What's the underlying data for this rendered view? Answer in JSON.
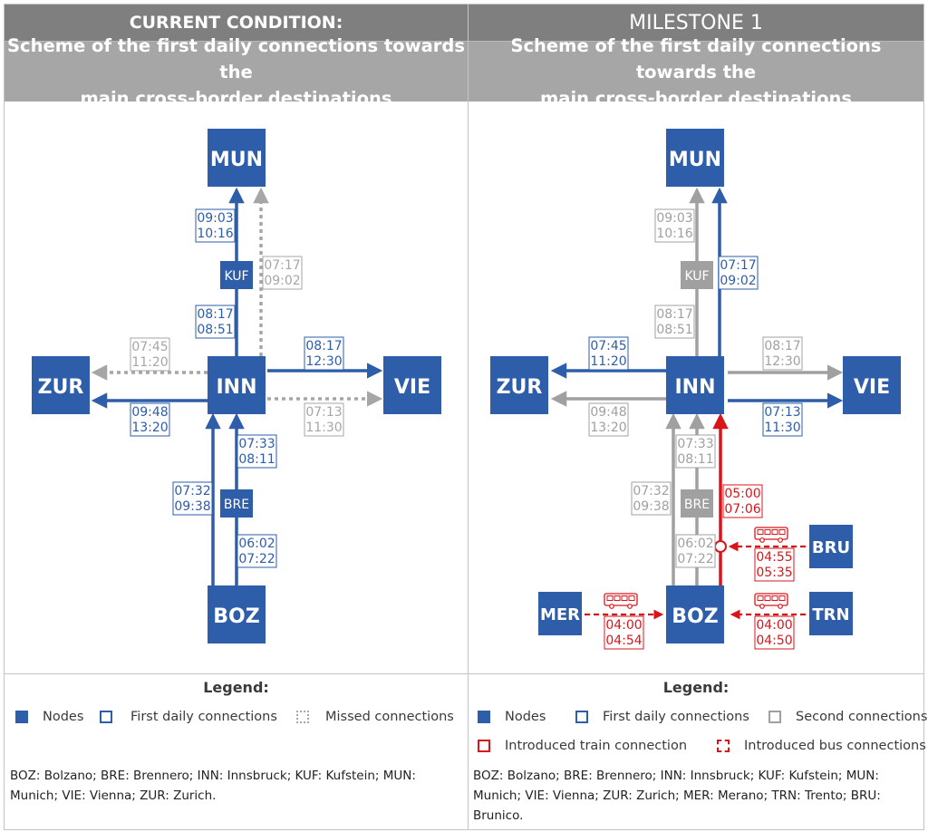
{
  "colors": {
    "node_blue": "#2e5da9",
    "first_connection_blue": "#2e5da9",
    "missed_gray": "#a6a6a6",
    "second_gray": "#a0a0a0",
    "introduced_red": "#d9151b",
    "header_dark": "#7f7f7f",
    "header_light": "#a6a6a6"
  },
  "left": {
    "title": "CURRENT CONDITION:",
    "subtitle_line1": "Scheme of the first daily connections towards the",
    "subtitle_line2": "main cross-border destinations",
    "nodes": {
      "MUN": "MUN",
      "INN": "INN",
      "ZUR": "ZUR",
      "VIE": "VIE",
      "BOZ": "BOZ",
      "KUF": "KUF",
      "BRE": "BRE"
    },
    "times": {
      "kuf_mun_1": "09:03",
      "kuf_mun_2": "10:16",
      "inn_kuf_1": "08:17",
      "inn_kuf_2": "08:51",
      "inn_mun_missed_1": "07:17",
      "inn_mun_missed_2": "09:02",
      "zur_missed_1": "07:45",
      "zur_missed_2": "11:20",
      "zur_first_1": "09:48",
      "zur_first_2": "13:20",
      "vie_first_1": "08:17",
      "vie_first_2": "12:30",
      "vie_missed_1": "07:13",
      "vie_missed_2": "11:30",
      "bre_inn_1": "07:33",
      "bre_inn_2": "08:11",
      "boz_inn_1": "07:32",
      "boz_inn_2": "09:38",
      "boz_bre_1": "06:02",
      "boz_bre_2": "07:22"
    },
    "legend": {
      "title": "Legend:",
      "nodes": "Nodes",
      "first": "First daily connections",
      "missed": "Missed connections"
    },
    "abbr_line1": "BOZ: Bolzano; BRE: Brennero; INN: Innsbruck; KUF: Kufstein; MUN:",
    "abbr_line2": "Munich; VIE: Vienna; ZUR: Zurich."
  },
  "right": {
    "title": "MILESTONE 1",
    "subtitle_line1": "Scheme of the first daily connections towards the",
    "subtitle_line2": "main cross-border destinations",
    "nodes": {
      "MUN": "MUN",
      "INN": "INN",
      "ZUR": "ZUR",
      "VIE": "VIE",
      "BOZ": "BOZ",
      "KUF": "KUF",
      "BRE": "BRE",
      "MER": "MER",
      "TRN": "TRN",
      "BRU": "BRU"
    },
    "times": {
      "kuf_mun_1": "09:03",
      "kuf_mun_2": "10:16",
      "inn_kuf_1": "08:17",
      "inn_kuf_2": "08:51",
      "inn_mun_1": "07:17",
      "inn_mun_2": "09:02",
      "zur_first_1": "07:45",
      "zur_first_2": "11:20",
      "zur_second_1": "09:48",
      "zur_second_2": "13:20",
      "vie_second_1": "08:17",
      "vie_second_2": "12:30",
      "vie_first_1": "07:13",
      "vie_first_2": "11:30",
      "bre_inn_1": "07:33",
      "bre_inn_2": "08:11",
      "boz_inn_1": "07:32",
      "boz_inn_2": "09:38",
      "boz_bre_1": "06:02",
      "boz_bre_2": "07:22",
      "new_train_1": "05:00",
      "new_train_2": "07:06",
      "bru_bus_1": "04:55",
      "bru_bus_2": "05:35",
      "mer_bus_1": "04:00",
      "mer_bus_2": "04:54",
      "trn_bus_1": "04:00",
      "trn_bus_2": "04:50"
    },
    "legend": {
      "title": "Legend:",
      "nodes": "Nodes",
      "first": "First daily connections",
      "second": "Second connections",
      "train": "Introduced train connection",
      "bus": "Introduced bus connections"
    },
    "abbr_line1": "BOZ: Bolzano; BRE: Brennero; INN: Innsbruck; KUF: Kufstein; MUN:",
    "abbr_line2": "Munich; VIE: Vienna; ZUR: Zurich; MER: Merano; TRN: Trento; BRU:",
    "abbr_line3": "Brunico."
  }
}
